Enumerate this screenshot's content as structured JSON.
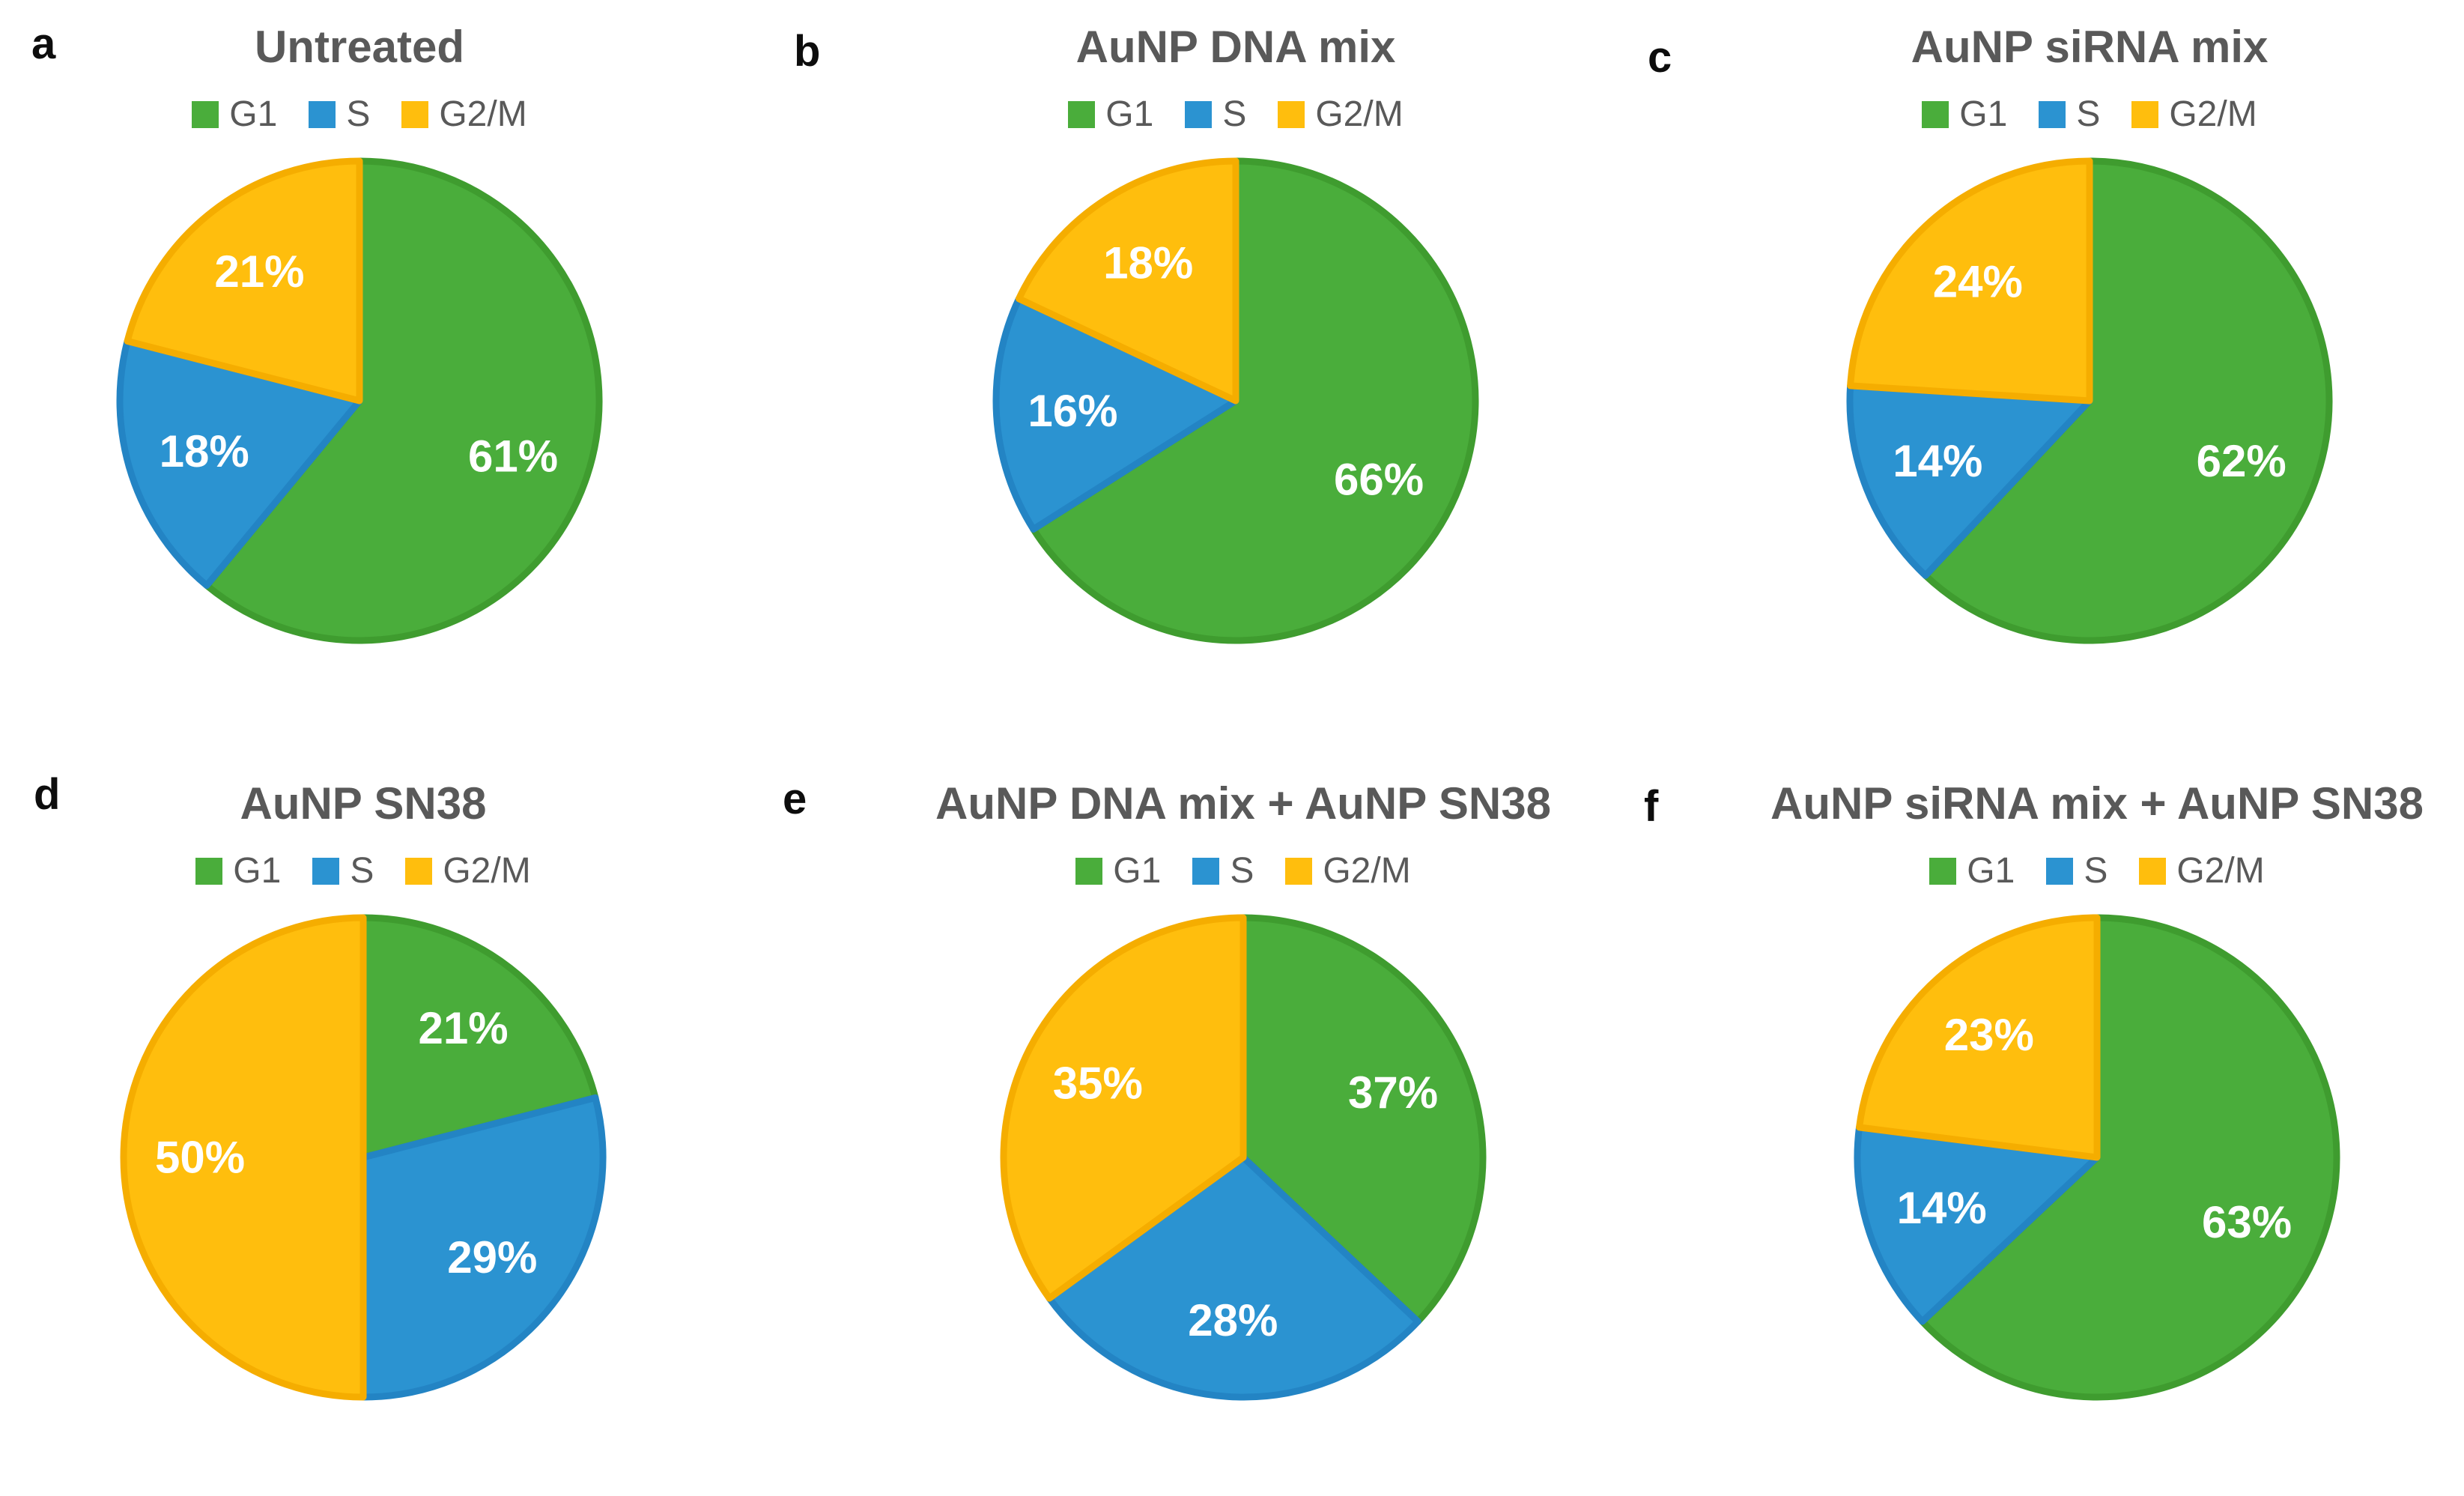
{
  "figure": {
    "description": "Cell cycle distribution pie charts, panels a-f",
    "legend_labels": [
      "G1",
      "S",
      "G2/M"
    ],
    "colors": {
      "G1": "#4AAD3B",
      "S": "#2B93D1",
      "G2/M": "#FFBE0D"
    },
    "border_colors": {
      "G1": "#3F9C2F",
      "S": "#2384C4",
      "G2/M": "#F5AD00"
    },
    "title_color": "#595959",
    "legend_text_color": "#595959",
    "percent_label_color": "#FFFFFF"
  },
  "chart_data": [
    {
      "type": "pie",
      "panel_letter": "a",
      "title": "Untreated",
      "labels": [
        "G1",
        "S",
        "G2/M"
      ],
      "values": [
        61,
        18,
        21
      ],
      "pct_labels": [
        "61%",
        "18%",
        "21%"
      ],
      "unit": "%",
      "start_angle_deg": 0,
      "direction": "clockwise",
      "legend_position": "top"
    },
    {
      "type": "pie",
      "panel_letter": "b",
      "title": "AuNP DNA mix",
      "labels": [
        "G1",
        "S",
        "G2/M"
      ],
      "values": [
        66,
        16,
        18
      ],
      "pct_labels": [
        "66%",
        "16%",
        "18%"
      ],
      "unit": "%",
      "start_angle_deg": 0,
      "direction": "clockwise",
      "legend_position": "top"
    },
    {
      "type": "pie",
      "panel_letter": "c",
      "title": "AuNP siRNA mix",
      "labels": [
        "G1",
        "S",
        "G2/M"
      ],
      "values": [
        62,
        14,
        24
      ],
      "pct_labels": [
        "62%",
        "14%",
        "24%"
      ],
      "unit": "%",
      "start_angle_deg": 0,
      "direction": "clockwise",
      "legend_position": "top"
    },
    {
      "type": "pie",
      "panel_letter": "d",
      "title": "AuNP SN38",
      "labels": [
        "G1",
        "S",
        "G2/M"
      ],
      "values": [
        21,
        29,
        50
      ],
      "pct_labels": [
        "21%",
        "29%",
        "50%"
      ],
      "unit": "%",
      "start_angle_deg": 0,
      "direction": "clockwise",
      "legend_position": "top"
    },
    {
      "type": "pie",
      "panel_letter": "e",
      "title": "AuNP DNA mix + AuNP SN38",
      "labels": [
        "G1",
        "S",
        "G2/M"
      ],
      "values": [
        37,
        28,
        35
      ],
      "pct_labels": [
        "37%",
        "28%",
        "35%"
      ],
      "unit": "%",
      "start_angle_deg": 0,
      "direction": "clockwise",
      "legend_position": "top"
    },
    {
      "type": "pie",
      "panel_letter": "f",
      "title": "AuNP siRNA mix + AuNP SN38",
      "labels": [
        "G1",
        "S",
        "G2/M"
      ],
      "values": [
        63,
        14,
        23
      ],
      "pct_labels": [
        "63%",
        "14%",
        "23%"
      ],
      "unit": "%",
      "start_angle_deg": 0,
      "direction": "clockwise",
      "legend_position": "top"
    }
  ]
}
